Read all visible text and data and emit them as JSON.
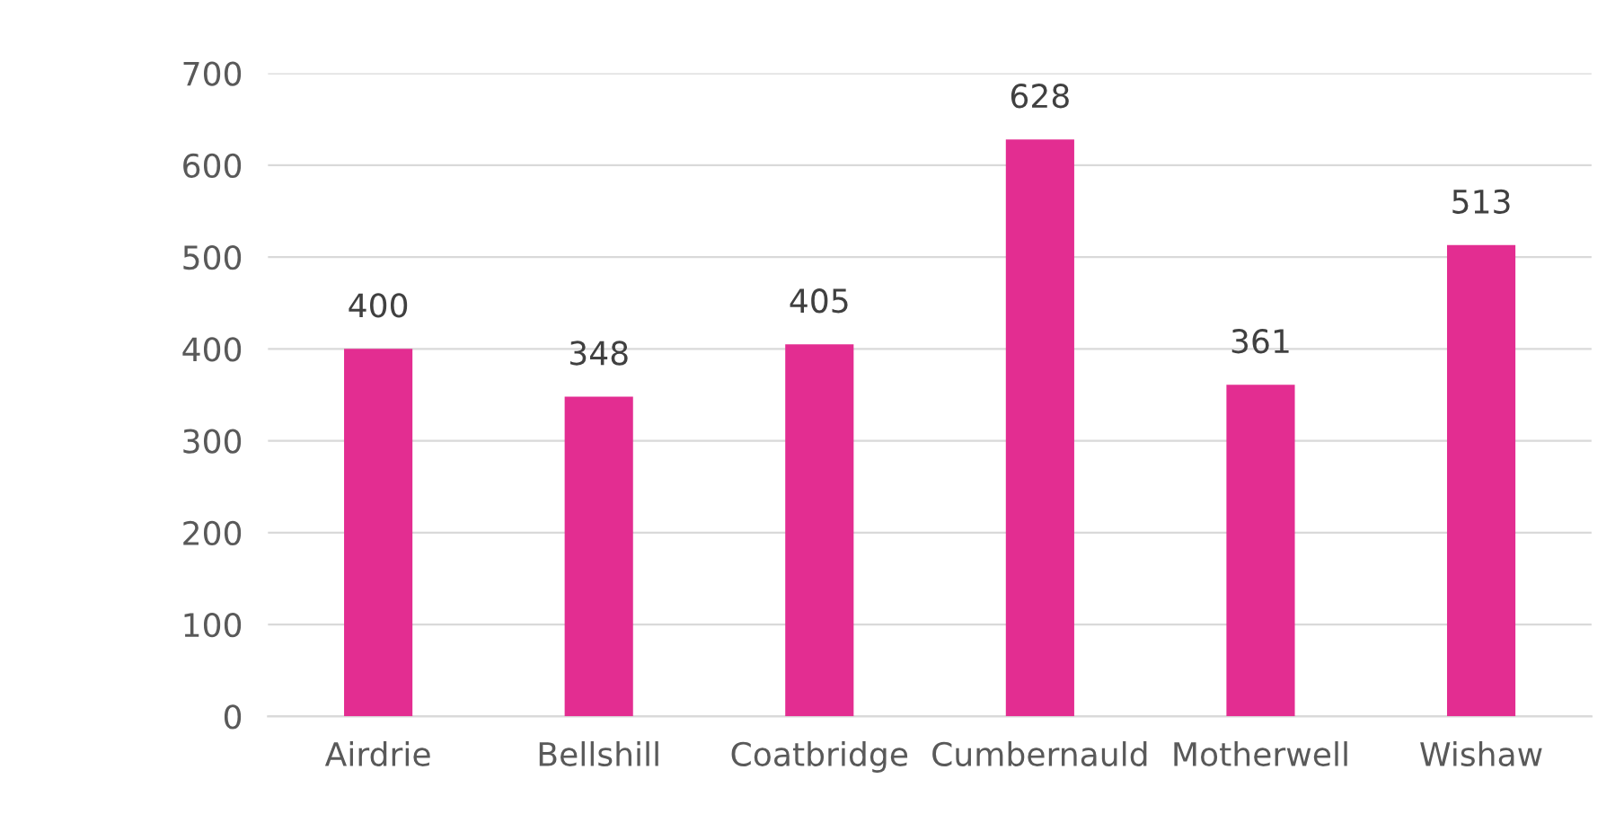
{
  "chart_data": {
    "type": "bar",
    "categories": [
      "Airdrie",
      "Bellshill",
      "Coatbridge",
      "Cumbernauld",
      "Motherwell",
      "Wishaw"
    ],
    "values": [
      400,
      348,
      405,
      628,
      361,
      513
    ],
    "color": "#e32d91",
    "ylim": [
      0,
      700
    ],
    "yticks": [
      0,
      100,
      200,
      300,
      400,
      500,
      600,
      700
    ],
    "grid": "y",
    "data_labels": true
  }
}
